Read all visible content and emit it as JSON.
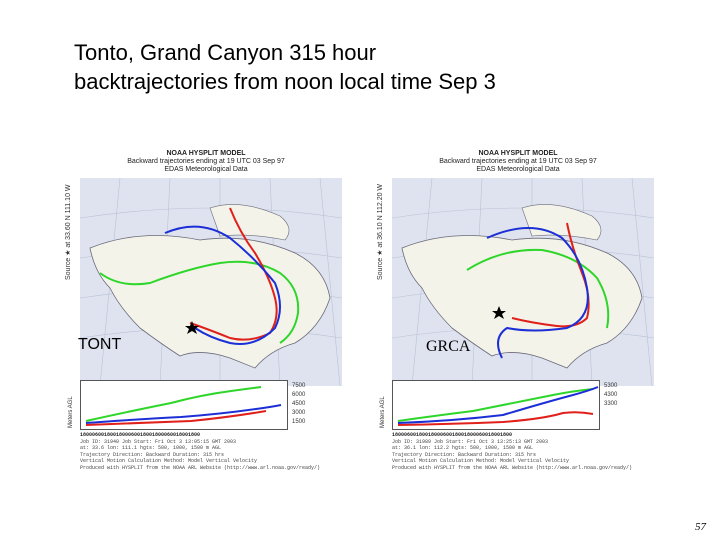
{
  "slide": {
    "title_line1": "Tonto, Grand Canyon 315 hour",
    "title_line2": "backtrajectories from noon local time Sep 3",
    "page_number": "57"
  },
  "panels": [
    {
      "header_l1": "NOAA HYSPLIT MODEL",
      "header_l2": "Backward trajectories ending at 19 UTC 03 Sep 97",
      "header_l3": "EDAS Meteorological Data",
      "source_label": "Source ★ at 33.60 N 111.10 W",
      "site_label": "TONT",
      "height_axis_label": "Meters AGL",
      "height_ticks": [
        "7500",
        "6000",
        "4500",
        "3000",
        "1500"
      ],
      "footer_dates": "1800060018001800060018001800060018001800",
      "footer_lines": [
        "Job ID: 31940  Job Start: Fri Oct 3 13:05:15 GMT 2003",
        "at: 33.6 lon: 111.1 hgts: 500, 1000, 1500 m AGL",
        "Trajectory Direction: Backward  Duration: 315 hrs",
        "Vertical Motion Calculation Method: Model Vertical Velocity",
        "Produced with HYSPLIT from the NOAA ARL Website (http://www.arl.noaa.gov/ready/)"
      ]
    },
    {
      "header_l1": "NOAA HYSPLIT MODEL",
      "header_l2": "Backward trajectories ending at 19 UTC 03 Sep 97",
      "header_l3": "EDAS Meteorological Data",
      "source_label": "Source ★ at 36.10 N 112.20 W",
      "site_label": "GRCA",
      "height_axis_label": "Meters AGL",
      "height_ticks": [
        "5300",
        "4300",
        "3300"
      ],
      "footer_dates": "1800060018001800060018001800060018001800",
      "footer_lines": [
        "Job ID: 31989  Job Start: Fri Oct 3 13:25:13 GMT 2003",
        "at: 36.1 lon: 112.2 hgts: 500, 1000, 1500 m AGL",
        "Trajectory Direction: Backward  Duration: 315 hrs",
        "Vertical Motion Calculation Method: Model Vertical Velocity",
        "Produced with HYSPLIT from the NOAA ARL Website (http://www.arl.noaa.gov/ready/)"
      ]
    }
  ],
  "colors": {
    "red": "#e0201a",
    "blue": "#1c2fd6",
    "green": "#2ed62a",
    "map_bg": "#dfe3ef"
  }
}
